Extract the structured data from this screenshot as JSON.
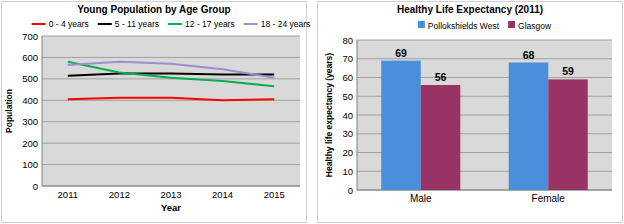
{
  "chart_data": [
    {
      "type": "line",
      "title": "Young Population by Age Group",
      "x_label": "Year",
      "y_label": "Population",
      "categories": [
        "2011",
        "2012",
        "2013",
        "2014",
        "2015"
      ],
      "series": [
        {
          "name": "0 - 4 years",
          "color": "#ff0000",
          "values": [
            405,
            412,
            412,
            400,
            405
          ]
        },
        {
          "name": "5 - 11 years",
          "color": "#000000",
          "values": [
            515,
            525,
            525,
            520,
            520
          ]
        },
        {
          "name": "12 - 17 years",
          "color": "#00b050",
          "values": [
            580,
            530,
            505,
            490,
            465
          ]
        },
        {
          "name": "18 - 24 years",
          "color": "#9a8fd0",
          "values": [
            565,
            580,
            570,
            545,
            505
          ]
        }
      ],
      "ylim": [
        0,
        700
      ],
      "yticks": [
        0,
        100,
        200,
        300,
        400,
        500,
        600,
        700
      ],
      "grid": true,
      "legend": "top"
    },
    {
      "type": "bar",
      "title": "Healthy Life Expectancy (2011)",
      "y_label": "Healthy life expectancy (years)",
      "categories": [
        "Male",
        "Female"
      ],
      "series": [
        {
          "name": "Pollokshields West",
          "color": "#4a8fdc",
          "values": [
            69,
            68
          ]
        },
        {
          "name": "Glasgow",
          "color": "#993366",
          "values": [
            56,
            59
          ]
        }
      ],
      "ylim": [
        0,
        80
      ],
      "yticks": [
        0,
        10,
        20,
        30,
        40,
        50,
        60,
        70,
        80
      ],
      "grid": true,
      "legend": "top",
      "data_labels": true
    }
  ]
}
